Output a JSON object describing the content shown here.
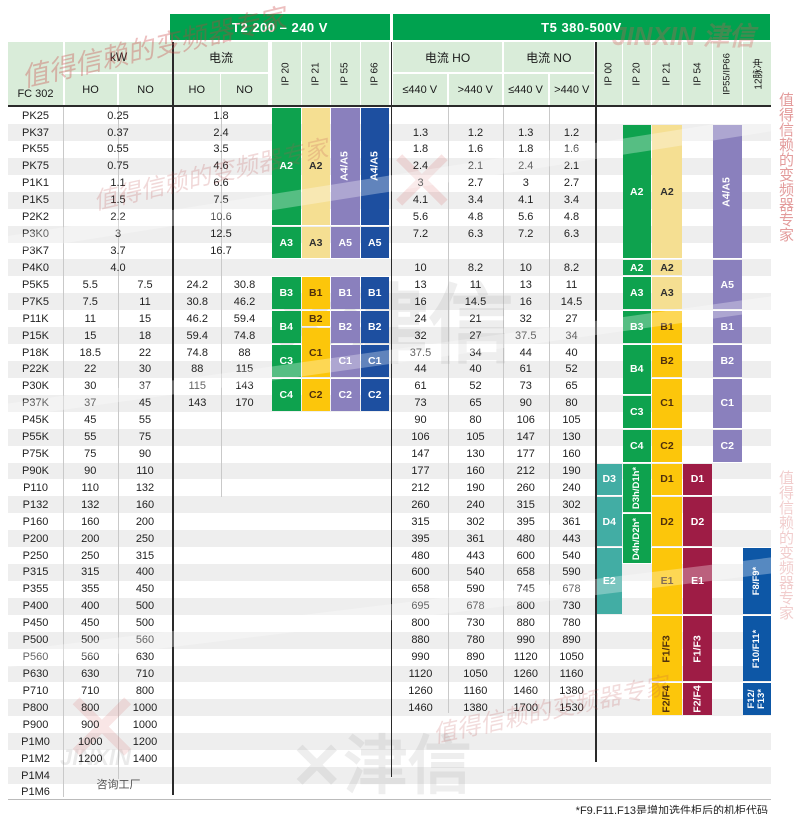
{
  "header": {
    "t2_band": "T2 200 – 240 V",
    "t5_band": "T5 380-500V",
    "fc302": "FC 302",
    "kw": "kW",
    "ho": "HO",
    "no": "NO",
    "t2_current": "电流",
    "t5_current_ho": "电流 HO",
    "t5_current_no": "电流 NO",
    "le440": "≤440 V",
    "gt440": ">440 V",
    "t2_ip": [
      "IP 20",
      "IP 21",
      "IP 55",
      "IP 66"
    ],
    "t5_ip": [
      "IP 00",
      "IP 20",
      "IP 21",
      "IP 54",
      "IP55/IP66",
      "12脉冲"
    ]
  },
  "colors": {
    "green": "#0ea24e",
    "pale_yellow": "#f5df92",
    "gold": "#fcc60b",
    "purple": "#8a80bd",
    "navy": "#1d4fa0",
    "teal": "#42ada4",
    "maroon": "#9e1c45",
    "blue12": "#0d57a6",
    "header_bg": "#d9ecd9",
    "band_green": "#00a24f"
  },
  "rows": [
    {
      "model": "PK25",
      "kw_ho": "0.25",
      "kw_no": "",
      "kw_center": true,
      "i2_ho": "1.8",
      "i2_no": "",
      "i2_center": true,
      "i5": [
        "",
        "",
        "",
        ""
      ]
    },
    {
      "model": "PK37",
      "kw_ho": "0.37",
      "kw_no": "",
      "kw_center": true,
      "i2_ho": "2.4",
      "i2_no": "",
      "i2_center": true,
      "i5": [
        "1.3",
        "1.2",
        "1.3",
        "1.2"
      ]
    },
    {
      "model": "PK55",
      "kw_ho": "0.55",
      "kw_no": "",
      "kw_center": true,
      "i2_ho": "3.5",
      "i2_no": "",
      "i2_center": true,
      "i5": [
        "1.8",
        "1.6",
        "1.8",
        "1.6"
      ]
    },
    {
      "model": "PK75",
      "kw_ho": "0.75",
      "kw_no": "",
      "kw_center": true,
      "i2_ho": "4.6",
      "i2_no": "",
      "i2_center": true,
      "i5": [
        "2.4",
        "2.1",
        "2.4",
        "2.1"
      ]
    },
    {
      "model": "P1K1",
      "kw_ho": "1.1",
      "kw_no": "",
      "kw_center": true,
      "i2_ho": "6.6",
      "i2_no": "",
      "i2_center": true,
      "i5": [
        "3",
        "2.7",
        "3",
        "2.7"
      ]
    },
    {
      "model": "P1K5",
      "kw_ho": "1.5",
      "kw_no": "",
      "kw_center": true,
      "i2_ho": "7.5",
      "i2_no": "",
      "i2_center": true,
      "i5": [
        "4.1",
        "3.4",
        "4.1",
        "3.4"
      ]
    },
    {
      "model": "P2K2",
      "kw_ho": "2.2",
      "kw_no": "",
      "kw_center": true,
      "i2_ho": "10.6",
      "i2_no": "",
      "i2_center": true,
      "i5": [
        "5.6",
        "4.8",
        "5.6",
        "4.8"
      ]
    },
    {
      "model": "P3K0",
      "kw_ho": "3",
      "kw_no": "",
      "kw_center": true,
      "i2_ho": "12.5",
      "i2_no": "",
      "i2_center": true,
      "i5": [
        "7.2",
        "6.3",
        "7.2",
        "6.3"
      ]
    },
    {
      "model": "P3K7",
      "kw_ho": "3.7",
      "kw_no": "",
      "kw_center": true,
      "i2_ho": "16.7",
      "i2_no": "",
      "i2_center": true,
      "i5": [
        "",
        "",
        "",
        ""
      ]
    },
    {
      "model": "P4K0",
      "kw_ho": "4.0",
      "kw_no": "",
      "kw_center": true,
      "i2_ho": "",
      "i2_no": "",
      "i2_center": true,
      "i5": [
        "10",
        "8.2",
        "10",
        "8.2"
      ]
    },
    {
      "model": "P5K5",
      "kw_ho": "5.5",
      "kw_no": "7.5",
      "kw_center": false,
      "i2_ho": "24.2",
      "i2_no": "30.8",
      "i2_center": false,
      "i5": [
        "13",
        "11",
        "13",
        "11"
      ]
    },
    {
      "model": "P7K5",
      "kw_ho": "7.5",
      "kw_no": "11",
      "kw_center": false,
      "i2_ho": "30.8",
      "i2_no": "46.2",
      "i2_center": false,
      "i5": [
        "16",
        "14.5",
        "16",
        "14.5"
      ]
    },
    {
      "model": "P11K",
      "kw_ho": "11",
      "kw_no": "15",
      "kw_center": false,
      "i2_ho": "46.2",
      "i2_no": "59.4",
      "i2_center": false,
      "i5": [
        "24",
        "21",
        "32",
        "27"
      ]
    },
    {
      "model": "P15K",
      "kw_ho": "15",
      "kw_no": "18",
      "kw_center": false,
      "i2_ho": "59.4",
      "i2_no": "74.8",
      "i2_center": false,
      "i5": [
        "32",
        "27",
        "37.5",
        "34"
      ]
    },
    {
      "model": "P18K",
      "kw_ho": "18.5",
      "kw_no": "22",
      "kw_center": false,
      "i2_ho": "74.8",
      "i2_no": "88",
      "i2_center": false,
      "i5": [
        "37.5",
        "34",
        "44",
        "40"
      ]
    },
    {
      "model": "P22K",
      "kw_ho": "22",
      "kw_no": "30",
      "kw_center": false,
      "i2_ho": "88",
      "i2_no": "115",
      "i2_center": false,
      "i5": [
        "44",
        "40",
        "61",
        "52"
      ]
    },
    {
      "model": "P30K",
      "kw_ho": "30",
      "kw_no": "37",
      "kw_center": false,
      "i2_ho": "115",
      "i2_no": "143",
      "i2_center": false,
      "i5": [
        "61",
        "52",
        "73",
        "65"
      ]
    },
    {
      "model": "P37K",
      "kw_ho": "37",
      "kw_no": "45",
      "kw_center": false,
      "i2_ho": "143",
      "i2_no": "170",
      "i2_center": false,
      "i5": [
        "73",
        "65",
        "90",
        "80"
      ]
    },
    {
      "model": "P45K",
      "kw_ho": "45",
      "kw_no": "55",
      "kw_center": false,
      "i2_ho": "",
      "i2_no": "",
      "i2_center": false,
      "i5": [
        "90",
        "80",
        "106",
        "105"
      ]
    },
    {
      "model": "P55K",
      "kw_ho": "55",
      "kw_no": "75",
      "kw_center": false,
      "i2_ho": "",
      "i2_no": "",
      "i2_center": false,
      "i5": [
        "106",
        "105",
        "147",
        "130"
      ]
    },
    {
      "model": "P75K",
      "kw_ho": "75",
      "kw_no": "90",
      "kw_center": false,
      "i2_ho": "",
      "i2_no": "",
      "i2_center": false,
      "i5": [
        "147",
        "130",
        "177",
        "160"
      ]
    },
    {
      "model": "P90K",
      "kw_ho": "90",
      "kw_no": "110",
      "kw_center": false,
      "i2_ho": "",
      "i2_no": "",
      "i2_center": false,
      "i5": [
        "177",
        "160",
        "212",
        "190"
      ]
    },
    {
      "model": "P110",
      "kw_ho": "110",
      "kw_no": "132",
      "kw_center": false,
      "i2_ho": "",
      "i2_no": "",
      "i2_center": false,
      "i5": [
        "212",
        "190",
        "260",
        "240"
      ]
    },
    {
      "model": "P132",
      "kw_ho": "132",
      "kw_no": "160",
      "kw_center": false,
      "i2_ho": "",
      "i2_no": "",
      "i2_center": false,
      "i5": [
        "260",
        "240",
        "315",
        "302"
      ]
    },
    {
      "model": "P160",
      "kw_ho": "160",
      "kw_no": "200",
      "kw_center": false,
      "i2_ho": "",
      "i2_no": "",
      "i2_center": false,
      "i5": [
        "315",
        "302",
        "395",
        "361"
      ]
    },
    {
      "model": "P200",
      "kw_ho": "200",
      "kw_no": "250",
      "kw_center": false,
      "i2_ho": "",
      "i2_no": "",
      "i2_center": false,
      "i5": [
        "395",
        "361",
        "480",
        "443"
      ]
    },
    {
      "model": "P250",
      "kw_ho": "250",
      "kw_no": "315",
      "kw_center": false,
      "i2_ho": "",
      "i2_no": "",
      "i2_center": false,
      "i5": [
        "480",
        "443",
        "600",
        "540"
      ]
    },
    {
      "model": "P315",
      "kw_ho": "315",
      "kw_no": "400",
      "kw_center": false,
      "i2_ho": "",
      "i2_no": "",
      "i2_center": false,
      "i5": [
        "600",
        "540",
        "658",
        "590"
      ]
    },
    {
      "model": "P355",
      "kw_ho": "355",
      "kw_no": "450",
      "kw_center": false,
      "i2_ho": "",
      "i2_no": "",
      "i2_center": false,
      "i5": [
        "658",
        "590",
        "745",
        "678"
      ]
    },
    {
      "model": "P400",
      "kw_ho": "400",
      "kw_no": "500",
      "kw_center": false,
      "i2_ho": "",
      "i2_no": "",
      "i2_center": false,
      "i5": [
        "695",
        "678",
        "800",
        "730"
      ]
    },
    {
      "model": "P450",
      "kw_ho": "450",
      "kw_no": "500",
      "kw_center": false,
      "i2_ho": "",
      "i2_no": "",
      "i2_center": false,
      "i5": [
        "800",
        "730",
        "880",
        "780"
      ]
    },
    {
      "model": "P500",
      "kw_ho": "500",
      "kw_no": "560",
      "kw_center": false,
      "i2_ho": "",
      "i2_no": "",
      "i2_center": false,
      "i5": [
        "880",
        "780",
        "990",
        "890"
      ]
    },
    {
      "model": "P560",
      "kw_ho": "560",
      "kw_no": "630",
      "kw_center": false,
      "i2_ho": "",
      "i2_no": "",
      "i2_center": false,
      "i5": [
        "990",
        "890",
        "1120",
        "1050"
      ]
    },
    {
      "model": "P630",
      "kw_ho": "630",
      "kw_no": "710",
      "kw_center": false,
      "i2_ho": "",
      "i2_no": "",
      "i2_center": false,
      "i5": [
        "1120",
        "1050",
        "1260",
        "1160"
      ]
    },
    {
      "model": "P710",
      "kw_ho": "710",
      "kw_no": "800",
      "kw_center": false,
      "i2_ho": "",
      "i2_no": "",
      "i2_center": false,
      "i5": [
        "1260",
        "1160",
        "1460",
        "1380"
      ]
    },
    {
      "model": "P800",
      "kw_ho": "800",
      "kw_no": "1000",
      "kw_center": false,
      "i2_ho": "",
      "i2_no": "",
      "i2_center": false,
      "i5": [
        "1460",
        "1380",
        "1700",
        "1530"
      ]
    },
    {
      "model": "P900",
      "kw_ho": "900",
      "kw_no": "1000",
      "kw_center": false,
      "i2_ho": "",
      "i2_no": "",
      "i2_center": false,
      "i5": [
        "",
        "",
        "",
        ""
      ]
    },
    {
      "model": "P1M0",
      "kw_ho": "1000",
      "kw_no": "1200",
      "kw_center": false,
      "i2_ho": "",
      "i2_no": "",
      "i2_center": false,
      "i5": [
        "",
        "",
        "",
        ""
      ]
    },
    {
      "model": "P1M2",
      "kw_ho": "1200",
      "kw_no": "1400",
      "kw_center": false,
      "i2_ho": "",
      "i2_no": "",
      "i2_center": false,
      "i5": [
        "",
        "",
        "",
        ""
      ]
    },
    {
      "model": "P1M4",
      "kw_ho": "",
      "kw_no": "",
      "kw_center": false,
      "i2_ho": "",
      "i2_no": "",
      "i2_center": false,
      "i5": [
        "",
        "",
        "",
        ""
      ]
    },
    {
      "model": "P1M6",
      "kw_ho": "",
      "kw_no": "",
      "kw_center": false,
      "i2_ho": "",
      "i2_no": "",
      "i2_center": false,
      "i5": [
        "",
        "",
        "",
        ""
      ]
    }
  ],
  "blocks": [
    {
      "c": "t2_20",
      "l": "A2",
      "s": 0,
      "e": 6,
      "k": "green",
      "v": false
    },
    {
      "c": "t2_21",
      "l": "A2",
      "s": 0,
      "e": 6,
      "k": "pale",
      "v": false
    },
    {
      "c": "t2_55",
      "l": "A4/A5",
      "s": 0,
      "e": 6,
      "k": "purple",
      "v": true
    },
    {
      "c": "t2_66",
      "l": "A4/A5",
      "s": 0,
      "e": 6,
      "k": "navy",
      "v": true
    },
    {
      "c": "t2_20",
      "l": "A3",
      "s": 7,
      "e": 8,
      "k": "green",
      "v": false
    },
    {
      "c": "t2_21",
      "l": "A3",
      "s": 7,
      "e": 8,
      "k": "pale",
      "v": false
    },
    {
      "c": "t2_55",
      "l": "A5",
      "s": 7,
      "e": 8,
      "k": "purple",
      "v": false
    },
    {
      "c": "t2_66",
      "l": "A5",
      "s": 7,
      "e": 8,
      "k": "navy",
      "v": false
    },
    {
      "c": "t2_20",
      "l": "B3",
      "s": 10,
      "e": 11,
      "k": "green",
      "v": false
    },
    {
      "c": "t2_21",
      "l": "B1",
      "s": 10,
      "e": 11,
      "k": "gold",
      "v": false
    },
    {
      "c": "t2_55",
      "l": "B1",
      "s": 10,
      "e": 11,
      "k": "purple",
      "v": false
    },
    {
      "c": "t2_66",
      "l": "B1",
      "s": 10,
      "e": 11,
      "k": "navy",
      "v": false
    },
    {
      "c": "t2_20",
      "l": "B4",
      "s": 12,
      "e": 13,
      "k": "green",
      "v": false
    },
    {
      "c": "t2_21",
      "l": "B2",
      "s": 12,
      "e": 12,
      "k": "gold",
      "v": false
    },
    {
      "c": "t2_55",
      "l": "B2",
      "s": 12,
      "e": 13,
      "k": "purple",
      "v": false
    },
    {
      "c": "t2_66",
      "l": "B2",
      "s": 12,
      "e": 13,
      "k": "navy",
      "v": false
    },
    {
      "c": "t2_20",
      "l": "C3",
      "s": 14,
      "e": 15,
      "k": "green",
      "v": false
    },
    {
      "c": "t2_21",
      "l": "C1",
      "s": 13,
      "e": 15,
      "k": "gold",
      "v": false
    },
    {
      "c": "t2_55",
      "l": "C1",
      "s": 14,
      "e": 15,
      "k": "purple",
      "v": false
    },
    {
      "c": "t2_66",
      "l": "C1",
      "s": 14,
      "e": 15,
      "k": "navy",
      "v": false
    },
    {
      "c": "t2_20",
      "l": "C4",
      "s": 16,
      "e": 17,
      "k": "green",
      "v": false
    },
    {
      "c": "t2_21",
      "l": "C2",
      "s": 16,
      "e": 17,
      "k": "gold",
      "v": false
    },
    {
      "c": "t2_55",
      "l": "C2",
      "s": 16,
      "e": 17,
      "k": "purple",
      "v": false
    },
    {
      "c": "t2_66",
      "l": "C2",
      "s": 16,
      "e": 17,
      "k": "navy",
      "v": false
    },
    {
      "c": "t5_20",
      "l": "A2",
      "s": 1,
      "e": 8,
      "k": "green",
      "v": false
    },
    {
      "c": "t5_21",
      "l": "A2",
      "s": 1,
      "e": 8,
      "k": "pale",
      "v": false
    },
    {
      "c": "t5_5566",
      "l": "A4/A5",
      "s": 1,
      "e": 8,
      "k": "purple",
      "v": true
    },
    {
      "c": "t5_20",
      "l": "A2",
      "s": 9,
      "e": 9,
      "k": "green",
      "v": false
    },
    {
      "c": "t5_21",
      "l": "A2",
      "s": 9,
      "e": 9,
      "k": "pale",
      "v": false
    },
    {
      "c": "t5_5566",
      "l": "A5",
      "s": 9,
      "e": 11,
      "k": "purple",
      "v": false
    },
    {
      "c": "t5_20",
      "l": "A3",
      "s": 10,
      "e": 11,
      "k": "green",
      "v": false
    },
    {
      "c": "t5_21",
      "l": "A3",
      "s": 10,
      "e": 11,
      "k": "pale",
      "v": false
    },
    {
      "c": "t5_20",
      "l": "B3",
      "s": 12,
      "e": 13,
      "k": "green",
      "v": false
    },
    {
      "c": "t5_21",
      "l": "B1",
      "s": 12,
      "e": 13,
      "k": "gold",
      "v": false
    },
    {
      "c": "t5_5566",
      "l": "B1",
      "s": 12,
      "e": 13,
      "k": "purple",
      "v": false
    },
    {
      "c": "t5_20",
      "l": "B4",
      "s": 14,
      "e": 16,
      "k": "green",
      "v": false
    },
    {
      "c": "t5_21",
      "l": "B2",
      "s": 14,
      "e": 15,
      "k": "gold",
      "v": false
    },
    {
      "c": "t5_5566",
      "l": "B2",
      "s": 14,
      "e": 15,
      "k": "purple",
      "v": false
    },
    {
      "c": "t5_20",
      "l": "C3",
      "s": 17,
      "e": 18,
      "k": "green",
      "v": false
    },
    {
      "c": "t5_21",
      "l": "C1",
      "s": 16,
      "e": 18,
      "k": "gold",
      "v": false
    },
    {
      "c": "t5_5566",
      "l": "C1",
      "s": 16,
      "e": 18,
      "k": "purple",
      "v": false
    },
    {
      "c": "t5_20",
      "l": "C4",
      "s": 19,
      "e": 20,
      "k": "green",
      "v": false
    },
    {
      "c": "t5_21",
      "l": "C2",
      "s": 19,
      "e": 20,
      "k": "gold",
      "v": false
    },
    {
      "c": "t5_5566",
      "l": "C2",
      "s": 19,
      "e": 20,
      "k": "purple",
      "v": false
    },
    {
      "c": "t5_00",
      "l": "D3",
      "s": 21,
      "e": 22,
      "k": "teal",
      "v": false
    },
    {
      "c": "t5_20",
      "l": "D3h/D1h*",
      "s": 21,
      "e": 23,
      "k": "green",
      "v": true
    },
    {
      "c": "t5_21",
      "l": "D1",
      "s": 21,
      "e": 22,
      "k": "gold",
      "v": false
    },
    {
      "c": "t5_54",
      "l": "D1",
      "s": 21,
      "e": 22,
      "k": "maroon",
      "v": false
    },
    {
      "c": "t5_00",
      "l": "D4",
      "s": 23,
      "e": 25,
      "k": "teal",
      "v": false
    },
    {
      "c": "t5_20",
      "l": "D4h/D2h*",
      "s": 24,
      "e": 26,
      "k": "green",
      "v": true
    },
    {
      "c": "t5_21",
      "l": "D2",
      "s": 23,
      "e": 25,
      "k": "gold",
      "v": false
    },
    {
      "c": "t5_54",
      "l": "D2",
      "s": 23,
      "e": 25,
      "k": "maroon",
      "v": false
    },
    {
      "c": "t5_00",
      "l": "E2",
      "s": 26,
      "e": 29,
      "k": "teal",
      "v": false
    },
    {
      "c": "t5_21",
      "l": "E1",
      "s": 26,
      "e": 29,
      "k": "gold",
      "v": false
    },
    {
      "c": "t5_54",
      "l": "E1",
      "s": 26,
      "e": 29,
      "k": "maroon",
      "v": false
    },
    {
      "c": "t5_12p",
      "l": "F8/F9*",
      "s": 26,
      "e": 29,
      "k": "blue12",
      "v": true
    },
    {
      "c": "t5_21",
      "l": "F1/F3",
      "s": 30,
      "e": 33,
      "k": "gold",
      "v": true
    },
    {
      "c": "t5_54",
      "l": "F1/F3",
      "s": 30,
      "e": 33,
      "k": "maroon",
      "v": true
    },
    {
      "c": "t5_12p",
      "l": "F10/F11*",
      "s": 30,
      "e": 33,
      "k": "blue12",
      "v": true
    },
    {
      "c": "t5_21",
      "l": "F2/F4",
      "s": 34,
      "e": 35,
      "k": "gold",
      "v": true
    },
    {
      "c": "t5_54",
      "l": "F2/F4",
      "s": 34,
      "e": 35,
      "k": "maroon",
      "v": true
    },
    {
      "c": "t5_12p",
      "l": "F12/\nF13*",
      "s": 34,
      "e": 35,
      "k": "blue12",
      "v": true
    }
  ],
  "consult_label": "咨询工厂",
  "footnote": "*F9,F11,F13是增加选件柜后的机柜代码",
  "watermarks": {
    "script_text": "值得信赖的变频器专家",
    "brand_cn": "津信",
    "brand_en": "JINXIN",
    "x_mark": "✕"
  }
}
